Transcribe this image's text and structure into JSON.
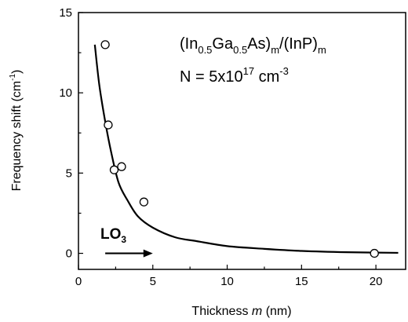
{
  "chart_data": {
    "type": "scatter",
    "xlabel": "Thickness",
    "xlabel_var": "m",
    "xlabel_unit": "(nm)",
    "ylabel": "Frequency shift (cm",
    "ylabel_sup": "-1",
    "ylabel_end": ")",
    "xlim": [
      0,
      22
    ],
    "ylim": [
      -1,
      15
    ],
    "xticks": [
      0,
      5,
      10,
      15,
      20
    ],
    "yticks": [
      0,
      5,
      10,
      15
    ],
    "grid": false,
    "series": [
      {
        "kind": "points",
        "marker": "open-circle",
        "points": [
          {
            "x": 1.8,
            "y": 13.0
          },
          {
            "x": 2.0,
            "y": 8.0
          },
          {
            "x": 2.4,
            "y": 5.2
          },
          {
            "x": 2.9,
            "y": 5.4
          },
          {
            "x": 4.4,
            "y": 3.2
          },
          {
            "x": 19.9,
            "y": 0.0
          }
        ]
      },
      {
        "kind": "curve",
        "points": [
          {
            "x": 1.1,
            "y": 13.0
          },
          {
            "x": 1.4,
            "y": 10.5
          },
          {
            "x": 1.8,
            "y": 8.2
          },
          {
            "x": 2.2,
            "y": 6.3
          },
          {
            "x": 2.7,
            "y": 4.4
          },
          {
            "x": 3.3,
            "y": 3.3
          },
          {
            "x": 4.0,
            "y": 2.3
          },
          {
            "x": 5.0,
            "y": 1.6
          },
          {
            "x": 6.5,
            "y": 1.0
          },
          {
            "x": 8.0,
            "y": 0.75
          },
          {
            "x": 10.0,
            "y": 0.45
          },
          {
            "x": 12.5,
            "y": 0.28
          },
          {
            "x": 15.0,
            "y": 0.15
          },
          {
            "x": 18.0,
            "y": 0.07
          },
          {
            "x": 21.5,
            "y": 0.03
          }
        ]
      }
    ],
    "annotations": {
      "formula": {
        "open1": "(In",
        "sub1": "0.5",
        "mid1": "Ga",
        "sub2": "0.5",
        "mid2": "As)",
        "sub3": "m",
        "mid3": "/(InP)",
        "sub4": "m"
      },
      "density": {
        "base": "N = 5x10",
        "sup": "17",
        "unit": " cm",
        "unit_sup": "-3"
      },
      "mode": {
        "label": "LO",
        "sub": "3",
        "arrow_from": [
          1.8,
          0.0
        ],
        "arrow_to": [
          5.0,
          0.0
        ]
      }
    }
  }
}
